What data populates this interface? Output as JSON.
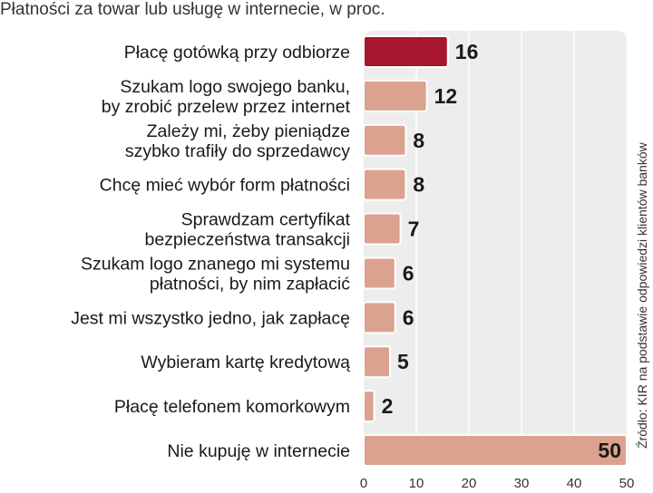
{
  "title": "Płatności za towar lub usługę w internecie, w proc.",
  "source": "Źródło: KIR na podstawie odpowiedzi klientów banków",
  "colors": {
    "highlight_bar": "#a6162c",
    "bar": "#dca290",
    "panel": "#ededed",
    "grid": "#ffffff"
  },
  "chart_data": {
    "type": "bar",
    "orientation": "horizontal",
    "xlim": [
      0,
      50
    ],
    "xticks": [
      0,
      10,
      20,
      30,
      40,
      50
    ],
    "grid": true,
    "categories": [
      [
        "Płacę gotówką przy odbiorze"
      ],
      [
        "Szukam logo swojego banku,",
        "by zrobić przelew przez internet"
      ],
      [
        "Zależy mi, żeby pieniądze",
        "szybko trafiły do sprzedawcy"
      ],
      [
        "Chcę mieć wybór form płatności"
      ],
      [
        "Sprawdzam certyfikat",
        "bezpieczeństwa transakcji"
      ],
      [
        "Szukam logo znanego mi systemu",
        "płatności, by nim zapłacić"
      ],
      [
        "Jest mi wszystko jedno, jak zapłacę"
      ],
      [
        "Wybieram kartę kredytową"
      ],
      [
        "Płacę telefonem komorkowym"
      ],
      [
        "Nie kupuję w internecie"
      ]
    ],
    "values": [
      16,
      12,
      8,
      8,
      7,
      6,
      6,
      5,
      2,
      50
    ],
    "highlight_index": 0
  }
}
